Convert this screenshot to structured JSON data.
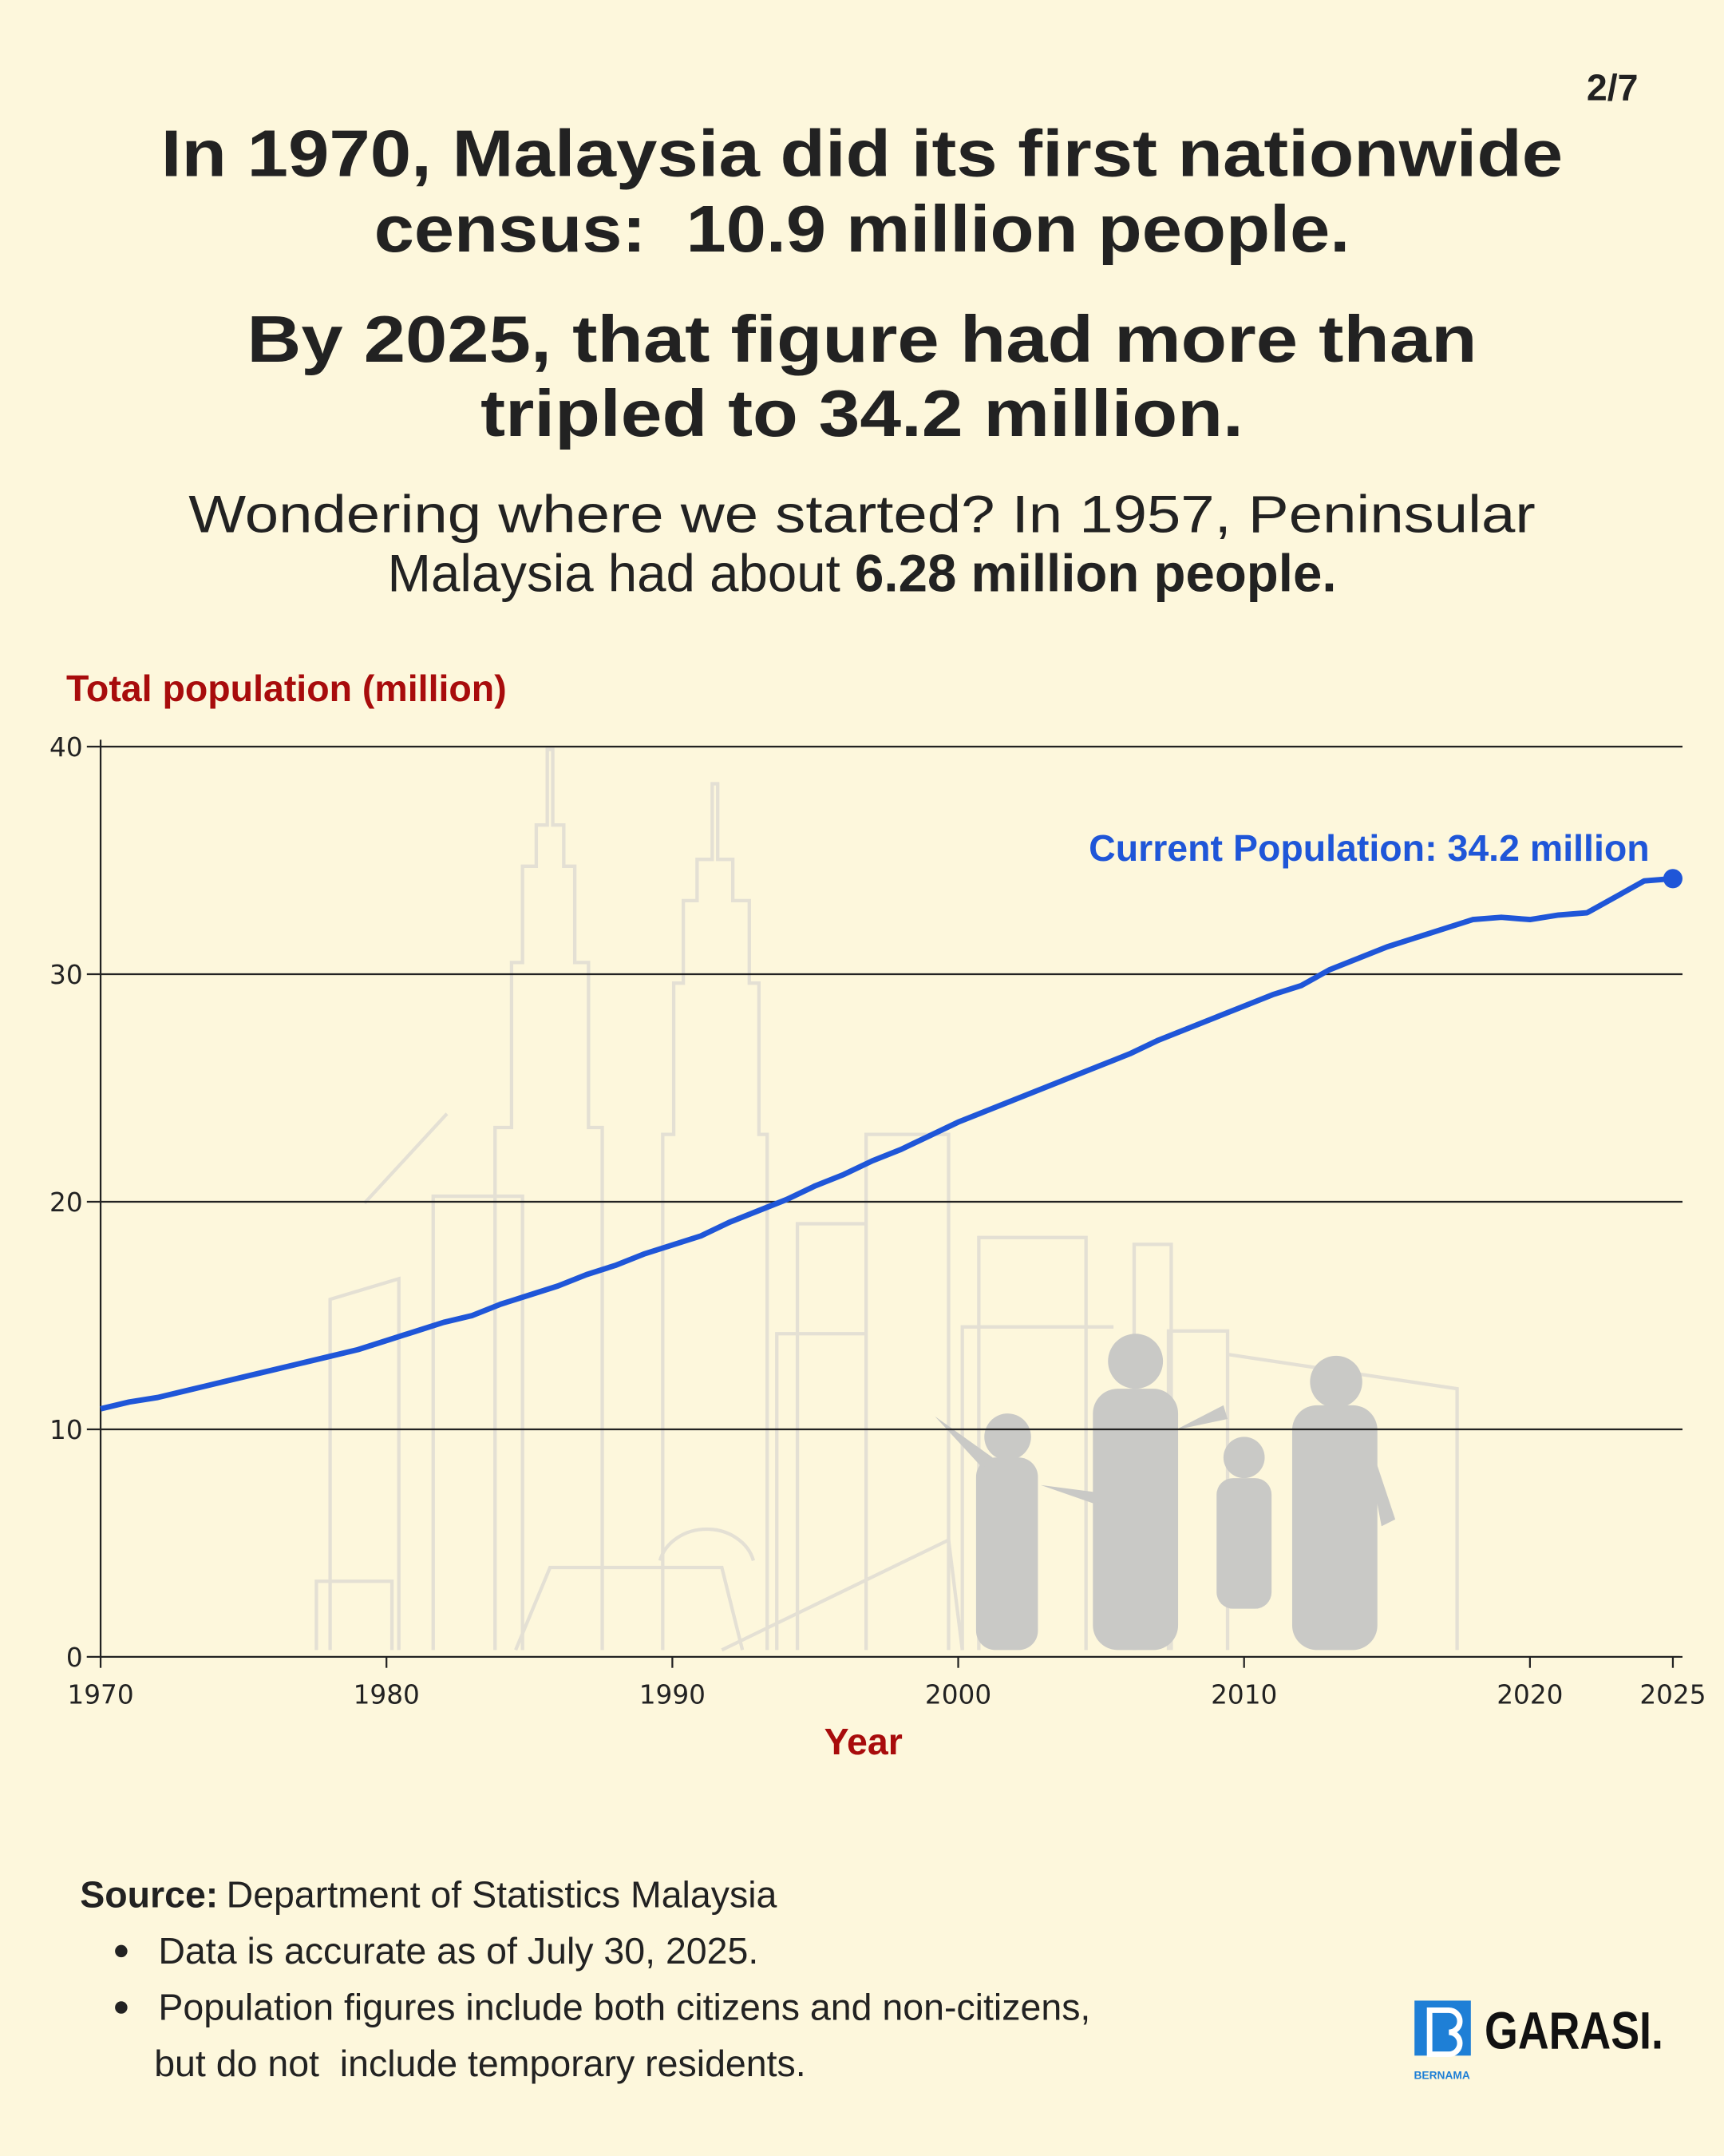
{
  "page_number": "2/7",
  "headline": {
    "line1": "In 1970, Malaysia did its first nationwide",
    "line2": "census:  10.9 million people.",
    "line3": "By 2025, that figure had more than",
    "line4": "tripled to 34.2 million."
  },
  "intro": {
    "line1": "Wondering where we started? In 1957, Peninsular",
    "line2": "Malaysia had about ",
    "line2_bold": "6.28 million people."
  },
  "chart_data": {
    "type": "line",
    "y_label": "Total population (million)",
    "x_label": "Year",
    "annotation": "Current Population: 34.2 million",
    "color": "#1f56d8",
    "grid": true,
    "x": [
      1970,
      1971,
      1972,
      1973,
      1974,
      1975,
      1976,
      1977,
      1978,
      1979,
      1980,
      1981,
      1982,
      1983,
      1984,
      1985,
      1986,
      1987,
      1988,
      1989,
      1990,
      1991,
      1992,
      1993,
      1994,
      1995,
      1996,
      1997,
      1998,
      1999,
      2000,
      2001,
      2002,
      2003,
      2004,
      2005,
      2006,
      2007,
      2008,
      2009,
      2010,
      2011,
      2012,
      2013,
      2014,
      2015,
      2016,
      2017,
      2018,
      2019,
      2020,
      2021,
      2022,
      2023,
      2024,
      2025
    ],
    "values": [
      10.9,
      11.2,
      11.4,
      11.7,
      12.0,
      12.3,
      12.6,
      12.9,
      13.2,
      13.5,
      13.9,
      14.3,
      14.7,
      15.0,
      15.5,
      15.9,
      16.3,
      16.8,
      17.2,
      17.7,
      18.1,
      18.5,
      19.1,
      19.6,
      20.1,
      20.7,
      21.2,
      21.8,
      22.3,
      22.9,
      23.5,
      24.0,
      24.5,
      25.0,
      25.5,
      26.0,
      26.5,
      27.1,
      27.6,
      28.1,
      28.6,
      29.1,
      29.5,
      30.2,
      30.7,
      31.2,
      31.6,
      32.0,
      32.4,
      32.5,
      32.4,
      32.6,
      32.7,
      33.4,
      34.1,
      34.2
    ],
    "xlim": [
      1970,
      2025
    ],
    "xticks": [
      1970,
      1980,
      1990,
      2000,
      2010,
      2020,
      2025
    ],
    "ylim": [
      0,
      40
    ],
    "yticks": [
      0,
      10,
      20,
      30,
      40
    ]
  },
  "source": {
    "label": "Source:",
    "text": "Department of Statistics Malaysia",
    "notes": [
      [
        "Data is accurate as of July 30, 2025."
      ],
      [
        "Population figures include both citizens and non-citizens,",
        "but do not  include temporary residents."
      ]
    ]
  },
  "logo": {
    "brand": "GARASI.",
    "sub": "BERNAMA"
  }
}
